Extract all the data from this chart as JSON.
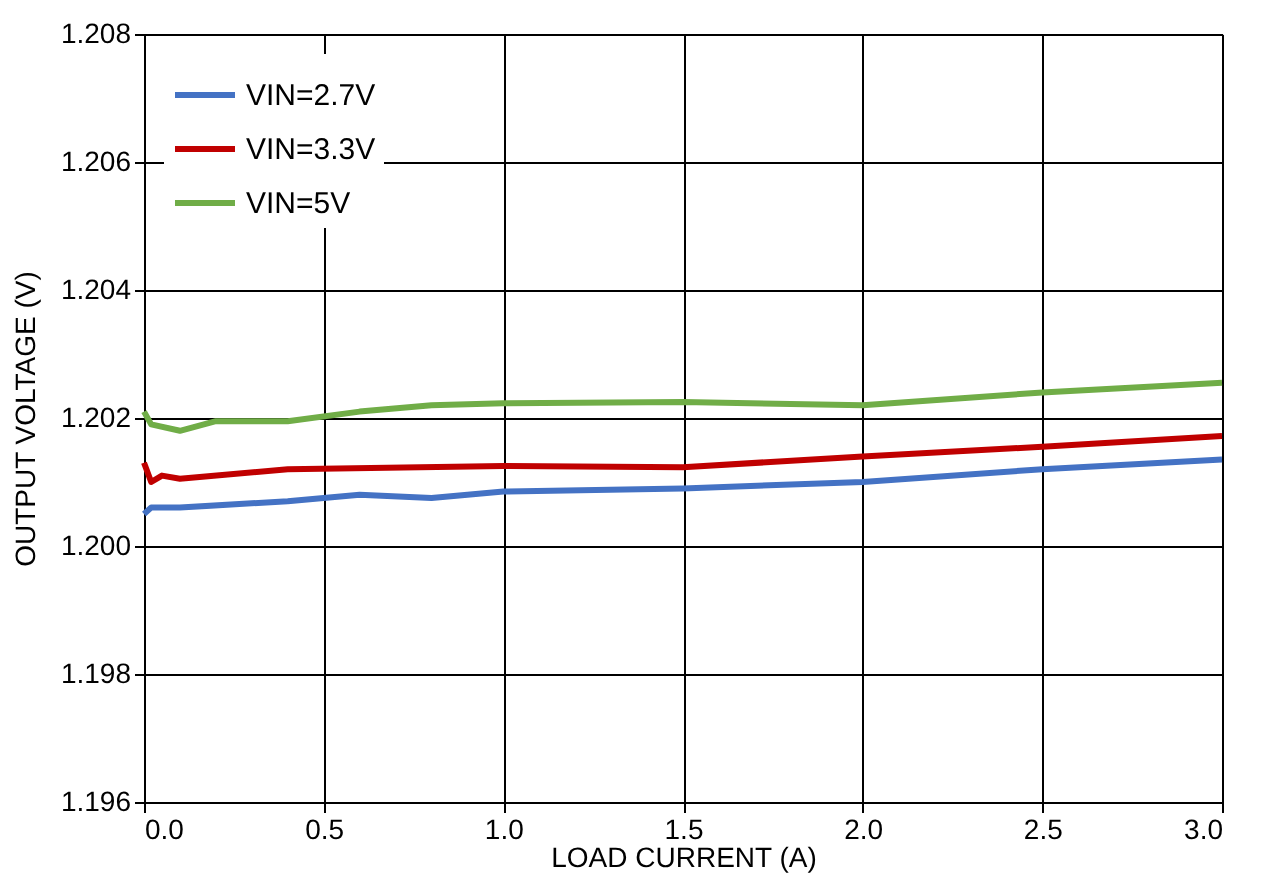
{
  "chart_data": {
    "type": "line",
    "xlabel": "LOAD CURRENT (A)",
    "ylabel": "OUTPUT VOLTAGE (V)",
    "xlim": [
      0,
      3
    ],
    "xticks": [
      {
        "value": 0,
        "label": "0.0"
      },
      {
        "value": 0.5,
        "label": "0.5"
      },
      {
        "value": 1,
        "label": "1.0"
      },
      {
        "value": 1.5,
        "label": "1.5"
      },
      {
        "value": 2,
        "label": "2.0"
      },
      {
        "value": 2.5,
        "label": "2.5"
      },
      {
        "value": 3,
        "label": "3.0"
      }
    ],
    "ylim": [
      1.196,
      1.208
    ],
    "yticks": [
      1.196,
      1.198,
      {
        "value": 1.2,
        "label": "1.200"
      },
      1.202,
      1.204,
      1.206,
      1.208
    ],
    "grid": true,
    "legend": "top left",
    "line_style": "solid",
    "marker": "none",
    "series": [
      {
        "name": "VIN=2.7V",
        "color": "#4472c4",
        "x": [
          0,
          0.02,
          0.1,
          0.4,
          0.6,
          0.8,
          1.0,
          1.5,
          2.0,
          2.5,
          3.0
        ],
        "values": [
          1.2005,
          1.2006,
          1.2006,
          1.2007,
          1.2008,
          1.20075,
          1.20085,
          1.2009,
          1.201,
          1.2012,
          1.20135
        ]
      },
      {
        "name": "VIN=3.3V",
        "color": "#c00000",
        "x": [
          0,
          0.02,
          0.05,
          0.1,
          0.4,
          1.0,
          1.5,
          2.0,
          2.5,
          3.0
        ],
        "values": [
          1.2013,
          1.201,
          1.2011,
          1.20105,
          1.2012,
          1.20125,
          1.20123,
          1.2014,
          1.20155,
          1.20172
        ]
      },
      {
        "name": "VIN=5V",
        "color": "#70ad47",
        "x": [
          0,
          0.02,
          0.1,
          0.2,
          0.4,
          0.6,
          0.8,
          1.0,
          1.5,
          2.0,
          2.5,
          3.0
        ],
        "values": [
          1.2021,
          1.2019,
          1.2018,
          1.20195,
          1.20195,
          1.2021,
          1.2022,
          1.20223,
          1.20225,
          1.2022,
          1.2024,
          1.20255
        ]
      }
    ]
  }
}
